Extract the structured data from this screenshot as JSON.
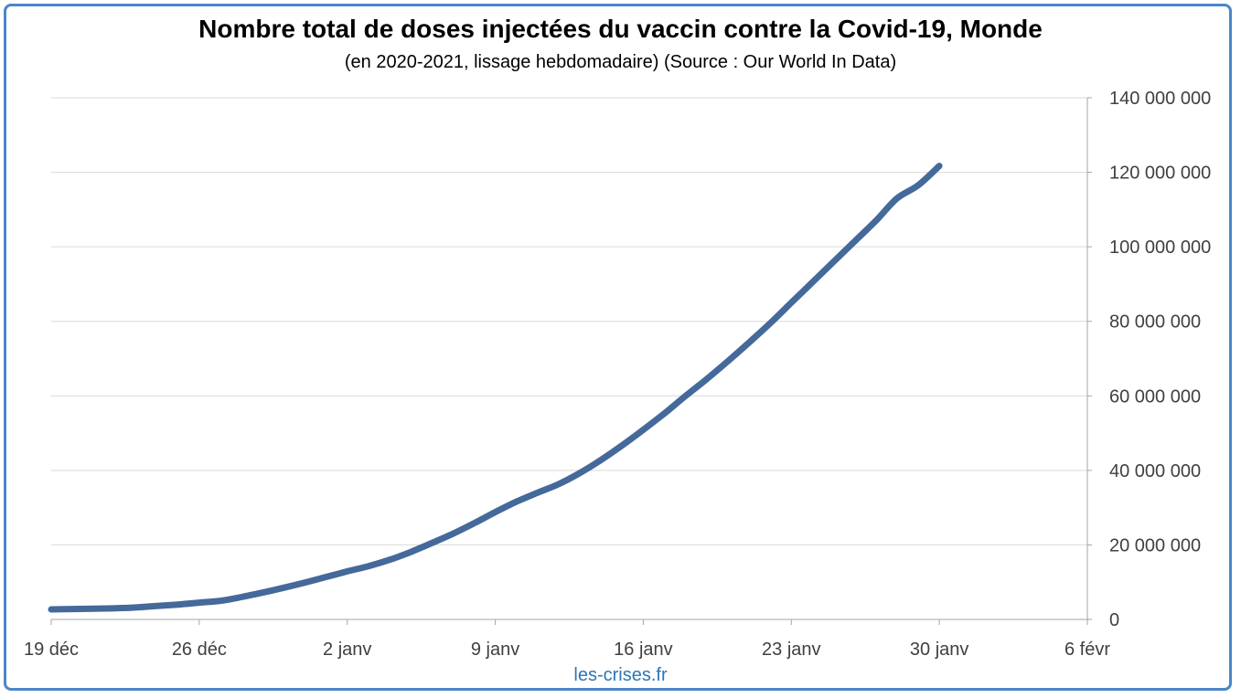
{
  "title": "Nombre total de doses injectées du vaccin contre la Covid-19, Monde",
  "subtitle": "(en 2020-2021, lissage hebdomadaire) (Source : Our World In Data)",
  "watermark": "les-crises.fr",
  "colors": {
    "line": "#44699a",
    "frame": "#4a86c8",
    "grid": "#d9d9d9",
    "watermark": "#2e75b6"
  },
  "chart_data": {
    "type": "line",
    "title": "Nombre total de doses injectées du vaccin contre la Covid-19, Monde",
    "subtitle": "(en 2020-2021, lissage hebdomadaire) (Source : Our World In Data)",
    "xlabel": "",
    "ylabel": "",
    "x_axis_position": "bottom",
    "y_axis_position": "right",
    "grid": "horizontal",
    "ylim": [
      0,
      140000000
    ],
    "y_ticks": [
      0,
      20000000,
      40000000,
      60000000,
      80000000,
      100000000,
      120000000,
      140000000
    ],
    "y_tick_labels": [
      "0",
      "20 000 000",
      "40 000 000",
      "60 000 000",
      "80 000 000",
      "100 000 000",
      "120 000 000",
      "140 000 000"
    ],
    "x_tick_labels": [
      "19 déc",
      "26 déc",
      "2 janv",
      "9 janv",
      "16 janv",
      "23 janv",
      "30 janv",
      "6 févr"
    ],
    "x_day_range": [
      0,
      49
    ],
    "series": [
      {
        "values": [
          [
            0,
            2700000
          ],
          [
            1,
            2800000
          ],
          [
            2,
            2900000
          ],
          [
            3,
            3000000
          ],
          [
            4,
            3200000
          ],
          [
            5,
            3600000
          ],
          [
            6,
            4000000
          ],
          [
            7,
            4500000
          ],
          [
            8,
            5000000
          ],
          [
            9,
            6000000
          ],
          [
            10,
            7200000
          ],
          [
            11,
            8500000
          ],
          [
            12,
            9900000
          ],
          [
            13,
            11400000
          ],
          [
            14,
            12900000
          ],
          [
            15,
            14300000
          ],
          [
            16,
            16000000
          ],
          [
            17,
            18100000
          ],
          [
            18,
            20500000
          ],
          [
            19,
            23000000
          ],
          [
            20,
            25800000
          ],
          [
            21,
            28800000
          ],
          [
            22,
            31600000
          ],
          [
            23,
            34000000
          ],
          [
            24,
            36300000
          ],
          [
            25,
            39300000
          ],
          [
            26,
            42800000
          ],
          [
            27,
            46700000
          ],
          [
            28,
            50900000
          ],
          [
            29,
            55300000
          ],
          [
            30,
            60000000
          ],
          [
            31,
            64500000
          ],
          [
            32,
            69300000
          ],
          [
            33,
            74300000
          ],
          [
            34,
            79500000
          ],
          [
            35,
            85000000
          ],
          [
            36,
            90500000
          ],
          [
            37,
            96000000
          ],
          [
            38,
            101500000
          ],
          [
            39,
            107000000
          ],
          [
            40,
            113000000
          ],
          [
            41,
            116500000
          ],
          [
            42,
            121700000
          ]
        ]
      }
    ]
  }
}
